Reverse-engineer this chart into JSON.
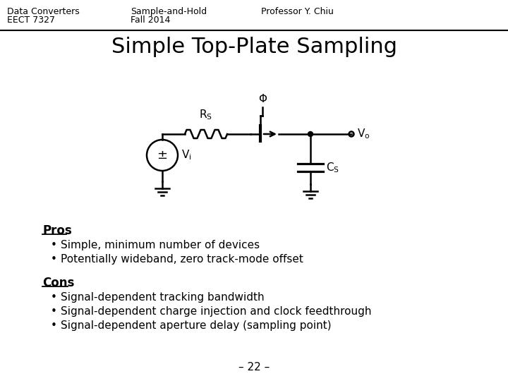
{
  "bg_color": "#ffffff",
  "header_left_line1": "Data Converters",
  "header_left_line2": "EECT 7327",
  "header_center_line1": "Sample-and-Hold",
  "header_center_line2": "Fall 2014",
  "header_right": "Professor Y. Chiu",
  "title": "Simple Top-Plate Sampling",
  "pros_label": "Pros",
  "pros_bullets": [
    "Simple, minimum number of devices",
    "Potentially wideband, zero track-mode offset"
  ],
  "cons_label": "Cons",
  "cons_bullets": [
    "Signal-dependent tracking bandwidth",
    "Signal-dependent charge injection and clock feedthrough",
    "Signal-dependent aperture delay (sampling point)"
  ],
  "page_number": "– 22 –",
  "header_fontsize": 9,
  "title_fontsize": 22,
  "body_fontsize": 11,
  "circuit_label_fontsize": 11
}
